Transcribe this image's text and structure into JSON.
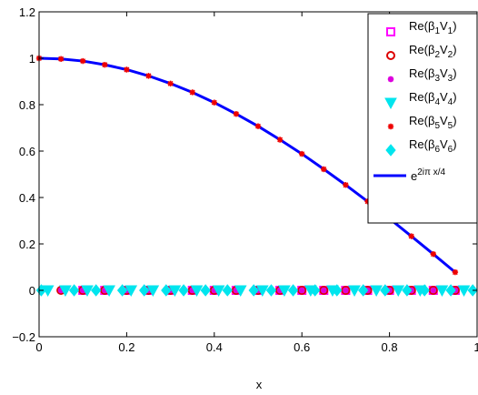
{
  "chart_data": {
    "type": "scatter",
    "title": "",
    "xlabel": "x",
    "ylabel": "",
    "xlim": [
      0,
      1
    ],
    "ylim": [
      -0.2,
      1.2
    ],
    "grid": false,
    "legend_position": "top-right",
    "x_ticks": [
      0,
      0.2,
      0.4,
      0.6,
      0.8,
      1
    ],
    "x_tick_labels": [
      "0",
      "0.2",
      "0.4",
      "0.6",
      "0.8",
      "1"
    ],
    "y_ticks": [
      -0.2,
      0,
      0.2,
      0.4,
      0.6,
      0.8,
      1,
      1.2
    ],
    "y_tick_labels": [
      "−0.2",
      "0",
      "0.2",
      "0.4",
      "0.6",
      "0.8",
      "1",
      "1.2"
    ],
    "curve": {
      "label_base": "e",
      "label_sup": "2iπ x/4",
      "color": "#0000ff",
      "x": [
        0,
        0.05,
        0.1,
        0.15,
        0.2,
        0.25,
        0.3,
        0.35,
        0.4,
        0.45,
        0.5,
        0.55,
        0.6,
        0.65,
        0.7,
        0.75,
        0.8,
        0.85,
        0.9,
        0.95
      ],
      "y": [
        1,
        0.997,
        0.988,
        0.972,
        0.951,
        0.924,
        0.891,
        0.853,
        0.809,
        0.76,
        0.707,
        0.649,
        0.588,
        0.522,
        0.454,
        0.383,
        0.309,
        0.233,
        0.156,
        0.078
      ]
    },
    "series": [
      {
        "name_main": "Re(β",
        "name_sub1": "1",
        "name_mid": "V",
        "name_sub2": "1",
        "name_end": ")",
        "marker": "square",
        "color": "#ff00ff",
        "x": [
          0.55,
          0.6,
          0.65,
          0.7,
          0.75,
          0.8,
          0.85,
          0.9,
          0.95,
          0.3,
          0.35,
          0.4,
          0.45,
          0.1,
          0.15,
          0.2,
          0.25,
          0.5
        ],
        "y": [
          0,
          0,
          0,
          0,
          0,
          0,
          0,
          0,
          0,
          0,
          0,
          0,
          0,
          0,
          0,
          0,
          0,
          0
        ]
      },
      {
        "name_main": "Re(β",
        "name_sub1": "2",
        "name_mid": "V",
        "name_sub2": "2",
        "name_end": ")",
        "marker": "circle",
        "color": "#dd0000",
        "x": [
          0.05,
          0.1,
          0.15,
          0.2,
          0.25,
          0.3,
          0.35,
          0.4,
          0.45,
          0.5,
          0.55,
          0.6,
          0.65,
          0.7,
          0.75,
          0.8,
          0.85,
          0.9,
          0.95
        ],
        "y": [
          0,
          0,
          0,
          0,
          0,
          0,
          0,
          0,
          0,
          0,
          0,
          0,
          0,
          0,
          0,
          0,
          0,
          0,
          0
        ]
      },
      {
        "name_main": "Re(β",
        "name_sub1": "3",
        "name_mid": "V",
        "name_sub2": "3",
        "name_end": ")",
        "marker": "star",
        "color": "#dd00dd",
        "x": [
          0.05,
          0.1,
          0.15,
          0.2,
          0.25,
          0.3,
          0.35,
          0.4,
          0.45,
          0.5,
          0.55,
          0.6,
          0.65,
          0.7,
          0.75,
          0.8,
          0.85,
          0.9,
          0.95
        ],
        "y": [
          0,
          0,
          0,
          0,
          0,
          0,
          0,
          0,
          0,
          0,
          0,
          0,
          0,
          0,
          0,
          0,
          0,
          0,
          0
        ]
      },
      {
        "name_main": "Re(β",
        "name_sub1": "4",
        "name_mid": "V",
        "name_sub2": "4",
        "name_end": ")",
        "marker": "triangle-down",
        "color": "#00e5ee",
        "x": [
          0.02,
          0.06,
          0.11,
          0.16,
          0.21,
          0.26,
          0.31,
          0.36,
          0.41,
          0.46,
          0.51,
          0.56,
          0.62,
          0.67,
          0.72,
          0.77,
          0.82,
          0.87,
          0.92,
          0.97
        ],
        "y": [
          0,
          0,
          0,
          0,
          0,
          0,
          0,
          0,
          0,
          0,
          0,
          0,
          0,
          0,
          0,
          0,
          0,
          0,
          0,
          0
        ]
      },
      {
        "name_main": "Re(β",
        "name_sub1": "5",
        "name_mid": "V",
        "name_sub2": "5",
        "name_end": ")",
        "marker": "asterisk",
        "color": "#ee0000",
        "x": [
          0,
          0.05,
          0.1,
          0.15,
          0.2,
          0.25,
          0.3,
          0.35,
          0.4,
          0.45,
          0.5,
          0.55,
          0.6,
          0.65,
          0.7,
          0.75,
          0.8,
          0.85,
          0.9,
          0.95
        ],
        "y": [
          1,
          0.997,
          0.988,
          0.972,
          0.951,
          0.924,
          0.891,
          0.853,
          0.809,
          0.76,
          0.707,
          0.649,
          0.588,
          0.522,
          0.454,
          0.383,
          0.309,
          0.233,
          0.156,
          0.078
        ]
      },
      {
        "name_main": "Re(β",
        "name_sub1": "6",
        "name_mid": "V",
        "name_sub2": "6",
        "name_end": ")",
        "marker": "diamond",
        "color": "#00e5ee",
        "x": [
          0.005,
          0.08,
          0.13,
          0.19,
          0.24,
          0.29,
          0.33,
          0.38,
          0.43,
          0.49,
          0.53,
          0.58,
          0.63,
          0.68,
          0.74,
          0.79,
          0.84,
          0.88,
          0.94,
          0.99
        ],
        "y": [
          0,
          0,
          0,
          0,
          0,
          0,
          0,
          0,
          0,
          0,
          0,
          0,
          0,
          0,
          0,
          0,
          0,
          0,
          0,
          0
        ]
      }
    ]
  }
}
